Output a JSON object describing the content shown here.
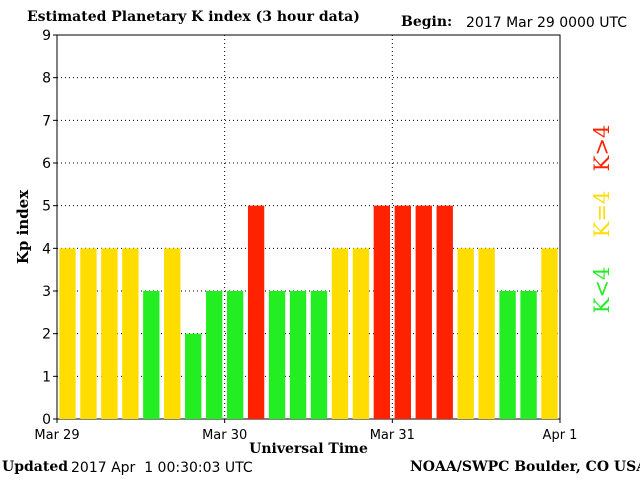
{
  "header": {
    "title": "Estimated Planetary K index (3 hour data)",
    "begin_label": "Begin:",
    "begin_value": "2017 Mar 29 0000 UTC"
  },
  "footer": {
    "updated_label": "Updated",
    "updated_value": "2017 Apr  1 00:30:03 UTC",
    "source": "NOAA/SWPC Boulder, CO USA"
  },
  "legend": {
    "high": "K>4",
    "mid": "K=4",
    "low": "K<4"
  },
  "colors": {
    "low": "#22ee22",
    "mid": "#ffdd00",
    "high": "#ff2200",
    "grid": "#000000",
    "background": "#ffffff"
  },
  "chart_data": {
    "type": "bar",
    "title": "Estimated Planetary K index (3 hour data)",
    "xlabel": "Universal Time",
    "ylabel": "Kp index",
    "ylim": [
      0,
      9
    ],
    "yticks": [
      "0",
      "1",
      "2",
      "3",
      "4",
      "5",
      "6",
      "7",
      "8",
      "9"
    ],
    "xticks": [
      "Mar 29",
      "Mar 30",
      "Mar 31",
      "Apr 1"
    ],
    "grid": "dotted at each day boundary and each integer Kp",
    "bar_interval_hours": 3,
    "values": [
      4,
      4,
      4,
      4,
      3,
      4,
      2,
      3,
      3,
      5,
      3,
      3,
      3,
      4,
      4,
      5,
      5,
      5,
      5,
      4,
      4,
      3,
      3,
      4
    ],
    "color_rule": "green K<4, yellow K=4, red K>4"
  }
}
